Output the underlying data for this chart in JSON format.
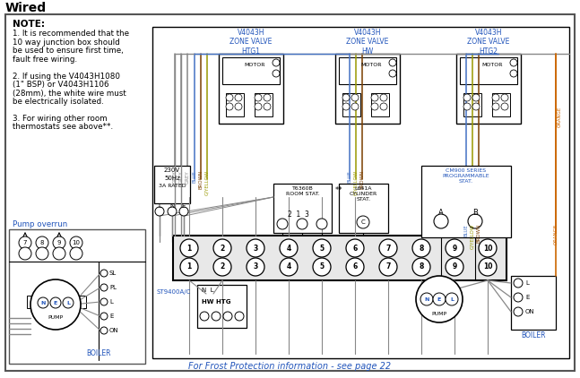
{
  "title": "Wired",
  "bg_color": "#ffffff",
  "note_title": "NOTE:",
  "note_lines": [
    "1. It is recommended that the",
    "10 way junction box should",
    "be used to ensure first time,",
    "fault free wiring.",
    "",
    "2. If using the V4043H1080",
    "(1\" BSP) or V4043H1106",
    "(28mm), the white wire must",
    "be electrically isolated.",
    "",
    "3. For wiring other room",
    "thermostats see above**."
  ],
  "pump_overrun_label": "Pump overrun",
  "zone_valve_labels": [
    "V4043H\nZONE VALVE\nHTG1",
    "V4043H\nZONE VALVE\nHW",
    "V4043H\nZONE VALVE\nHTG2"
  ],
  "frost_note": "For Frost Protection information - see page 22",
  "colors": {
    "grey": "#888888",
    "blue": "#4472c4",
    "brown": "#7B3F00",
    "gyellow": "#999900",
    "orange": "#cc6600",
    "black": "#111111",
    "text_blue": "#2255bb",
    "text_orange": "#cc6600",
    "border": "#555555"
  }
}
